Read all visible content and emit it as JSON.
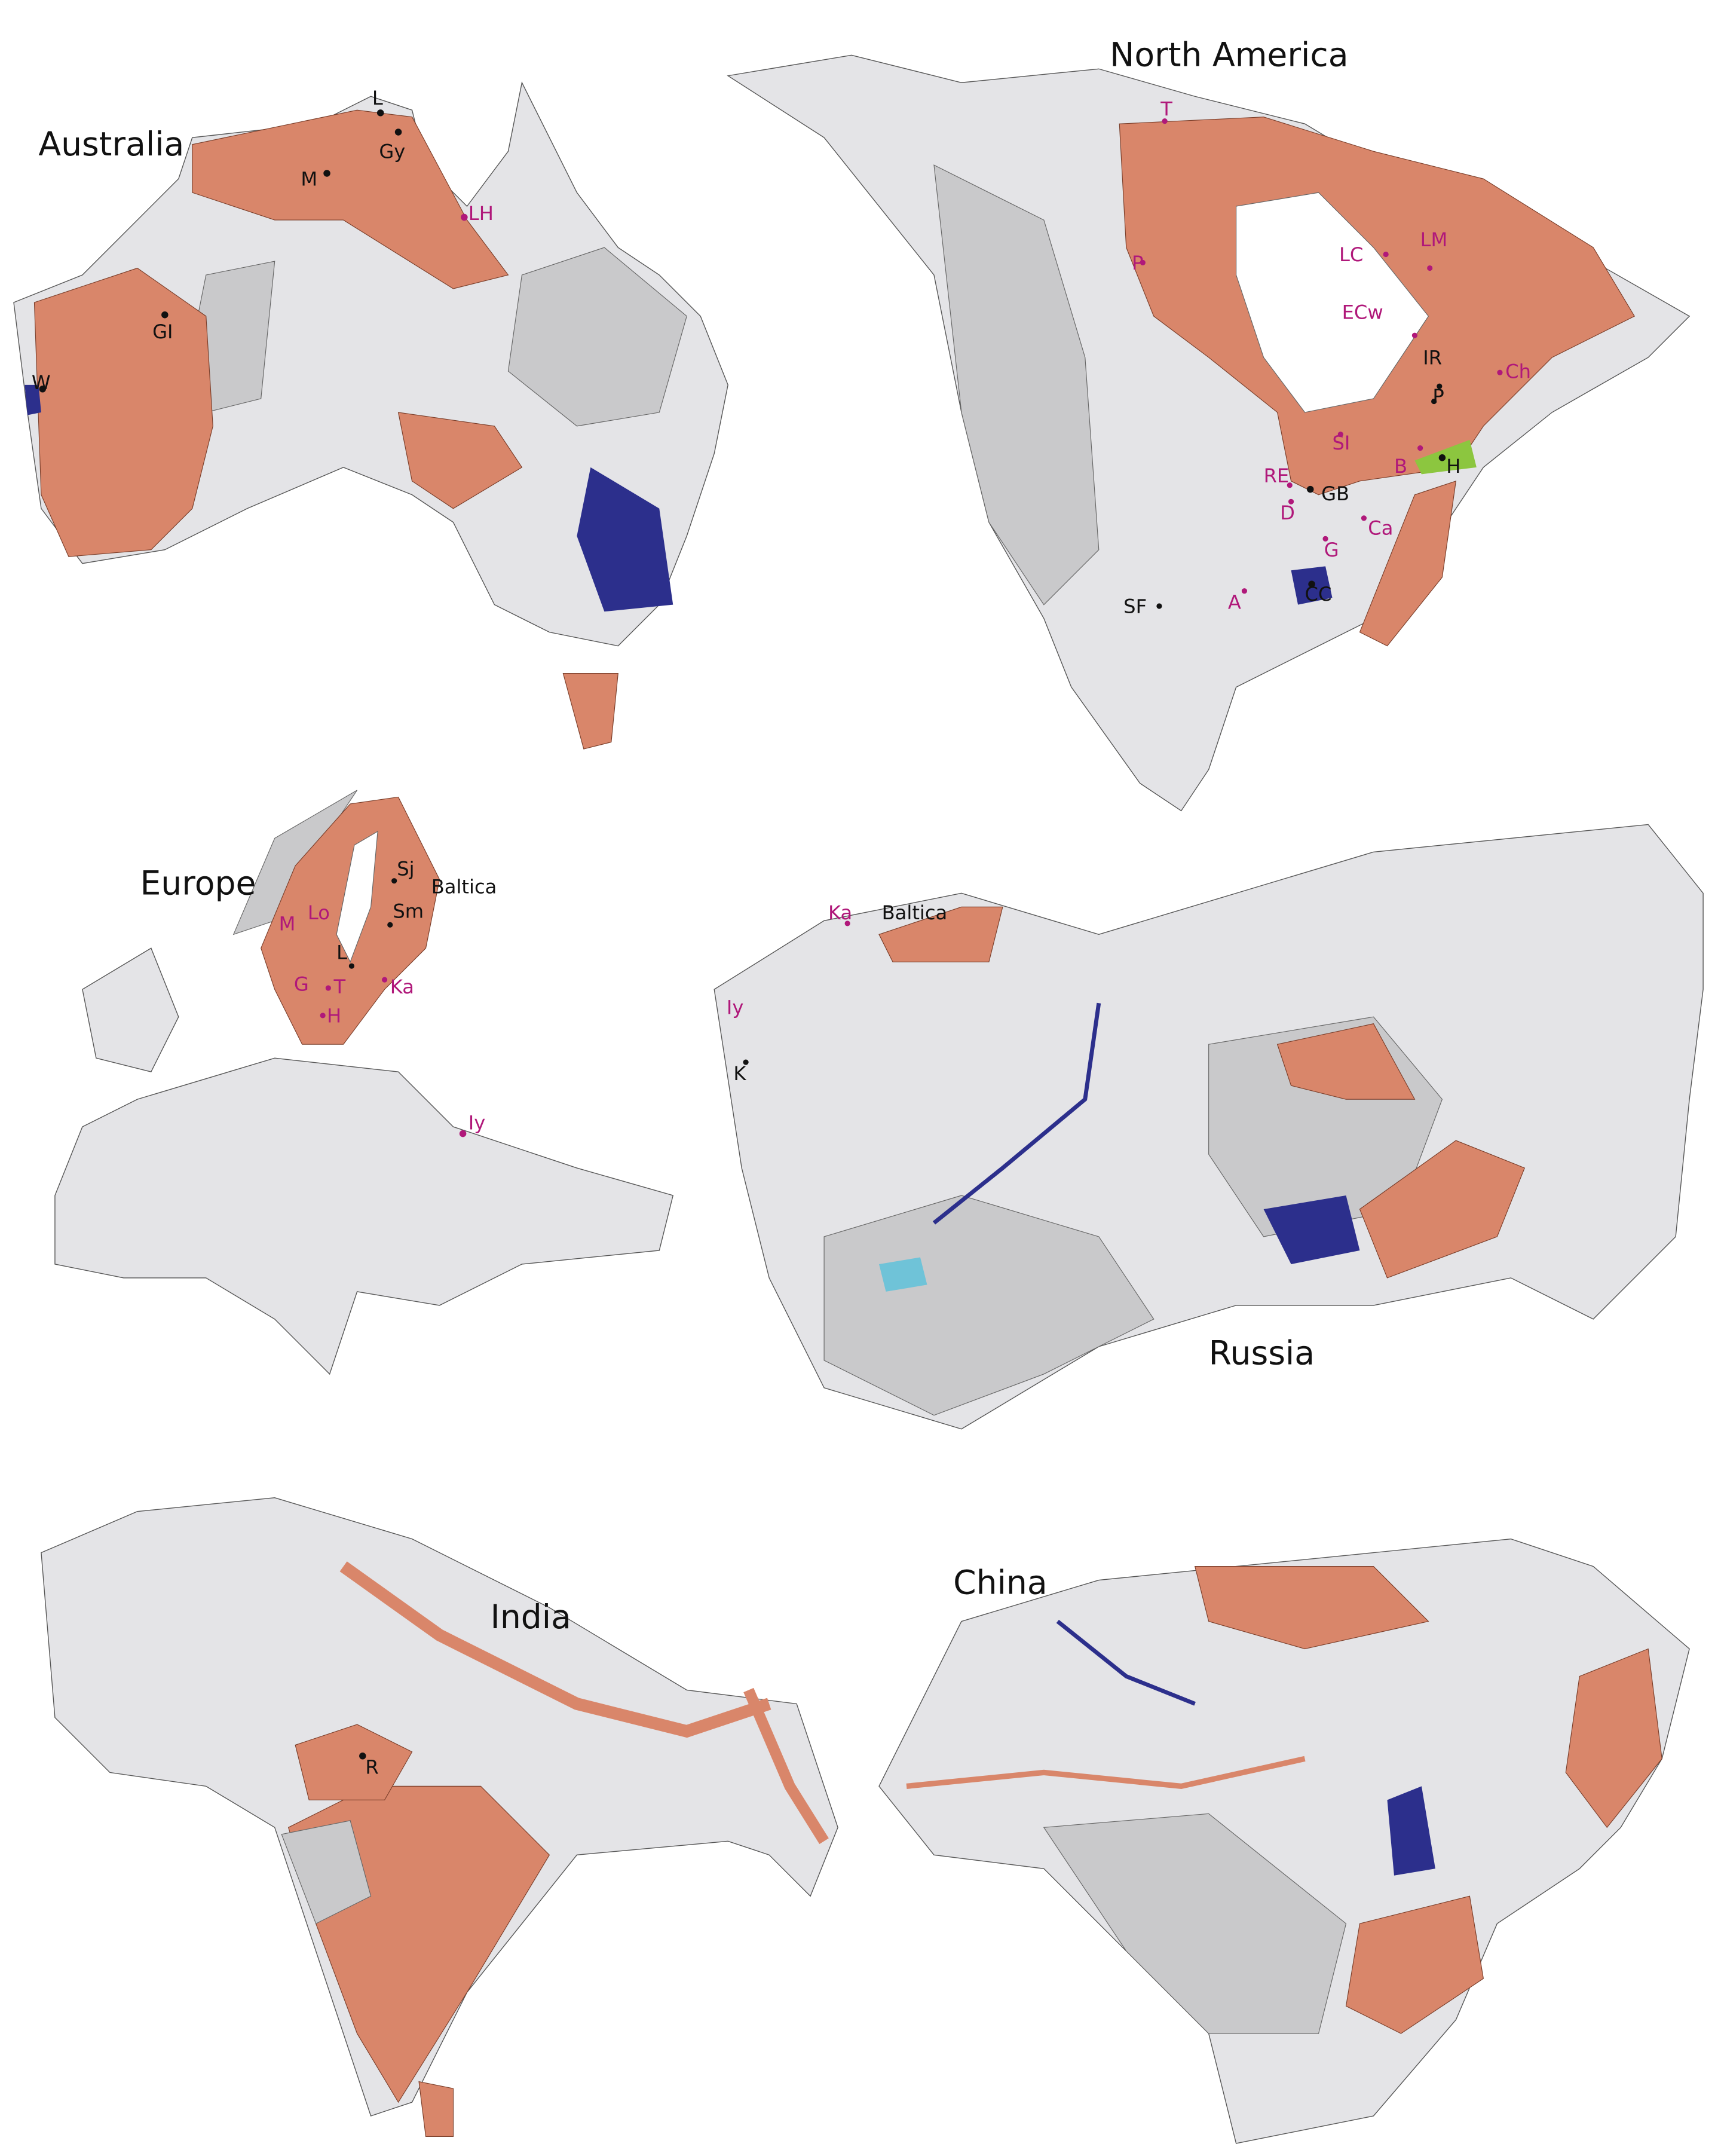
{
  "colors": {
    "shield": "#d9866a",
    "land_light": "#e4e4e7",
    "land_mid": "#c9c9cb",
    "navy_unit": "#2c2f8c",
    "cyan_unit": "#6fc3d8",
    "label_magenta": "#b0187a",
    "label_black": "#111111"
  },
  "maps": {
    "australia": {
      "title": "Australia",
      "labels": {
        "L": "L",
        "Gy": "Gy",
        "M": "M",
        "LH": "LH",
        "GI": "GI",
        "W": "W"
      }
    },
    "north_america": {
      "title": "North America",
      "labels": {
        "T": "T",
        "P1": "P",
        "LC": "LC",
        "LM": "LM",
        "ECw": "ECw",
        "IR": "IR",
        "P2": "P",
        "Ch": "Ch",
        "SI": "SI",
        "B": "B",
        "H": "H",
        "RE": "RE",
        "GB": "GB",
        "D": "D",
        "Ca": "Ca",
        "G": "G",
        "CC": "CC",
        "A": "A",
        "SF": "SF"
      }
    },
    "europe": {
      "title": "Europe",
      "labels": {
        "Sj": "Sj",
        "Baltica": "Baltica",
        "Sm": "Sm",
        "M": "M",
        "Lo": "Lo",
        "L": "L",
        "G": "G",
        "T": "T",
        "Ka": "Ka",
        "H": "H",
        "Iy": "Iy"
      }
    },
    "russia": {
      "title": "Russia",
      "labels": {
        "Ka": "Ka",
        "Baltica": "Baltica",
        "Iy": "Iy",
        "K": "K"
      }
    },
    "india": {
      "title": "India",
      "labels": {
        "R": "R"
      }
    },
    "china": {
      "title": "China",
      "labels": {}
    }
  }
}
